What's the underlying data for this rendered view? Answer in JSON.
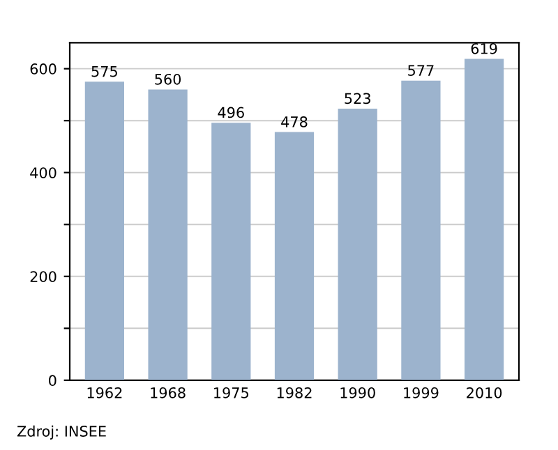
{
  "chart_data": {
    "type": "bar",
    "categories": [
      "1962",
      "1968",
      "1975",
      "1982",
      "1990",
      "1999",
      "2010"
    ],
    "values": [
      575,
      560,
      496,
      478,
      523,
      577,
      619
    ],
    "color": "#9cb3cd",
    "data_labels": true,
    "ylim": [
      0,
      650
    ],
    "yticks": [
      0,
      {
        "value": 100,
        "label": null
      },
      200,
      {
        "value": 300,
        "label": null
      },
      400,
      {
        "value": 500,
        "label": null
      },
      600
    ],
    "grid": "y",
    "annotations": [
      "Zdroj: INSEE"
    ]
  }
}
